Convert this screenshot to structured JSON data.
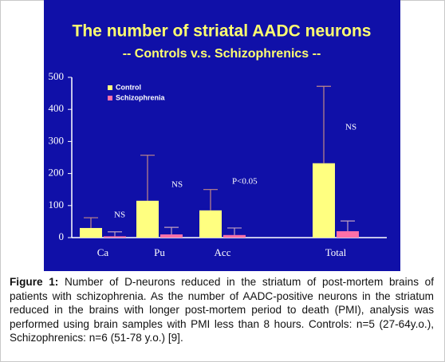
{
  "chart_data": {
    "type": "bar",
    "title": "The number of striatal AADC neurons",
    "subtitle": "-- Controls v.s. Schizophrenics --",
    "categories": [
      "Ca",
      "Pu",
      "Acc",
      "Total"
    ],
    "series": [
      {
        "name": "Control",
        "color": "#ffff80",
        "values": [
          30,
          115,
          85,
          232
        ],
        "errors": [
          32,
          142,
          65,
          240
        ]
      },
      {
        "name": "Schizophrenia",
        "color": "#ff70a8",
        "values": [
          4,
          10,
          8,
          20
        ],
        "errors": [
          14,
          22,
          22,
          32
        ]
      }
    ],
    "annotations": [
      "NS",
      "NS",
      "P<0.05",
      "NS"
    ],
    "ylim": [
      0,
      500
    ],
    "yticks": [
      0,
      100,
      200,
      300,
      400,
      500
    ]
  },
  "caption": {
    "label": "Figure 1:",
    "text": "Number of D-neurons reduced in the striatum of post-mortem brains of patients with schizophrenia. As the number of AADC-positive neurons in the striatum reduced in the brains with longer post-mortem period to death (PMI), analysis was performed using brain samples with PMI less than 8 hours. Controls: n=5 (27-64y.o.), Schizophrenics: n=6 (51-78 y.o.) [9]."
  }
}
